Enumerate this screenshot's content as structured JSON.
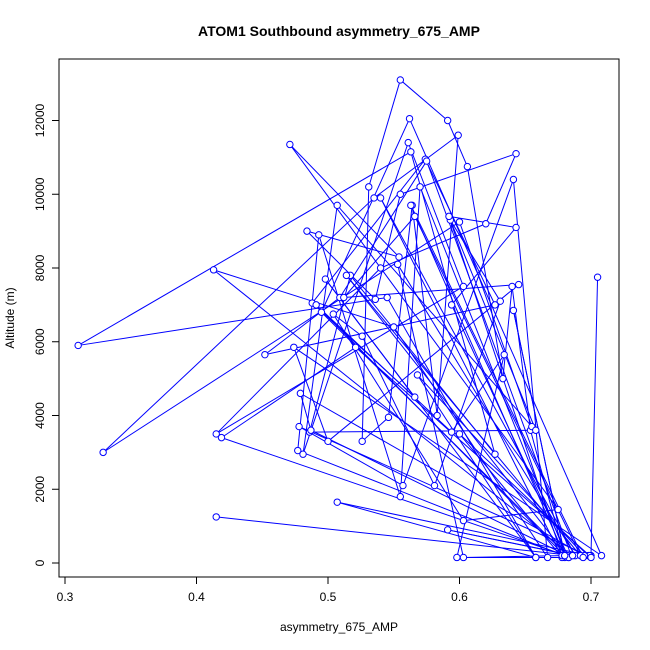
{
  "chart_data": {
    "type": "line",
    "title": "ATOM1 Southbound asymmetry_675_AMP",
    "xlabel": "asymmetry_675_AMP",
    "ylabel": "Altitude (m)",
    "xlim": [
      0.3,
      0.71
    ],
    "ylim": [
      0,
      13100
    ],
    "xticks": [
      "0.3",
      "0.4",
      "0.5",
      "0.6",
      "0.7"
    ],
    "yticks": [
      "0",
      "2000",
      "4000",
      "6000",
      "8000",
      "10000",
      "12000"
    ],
    "grid": false,
    "color": "#0000ff",
    "series": [
      {
        "x": [
          0.705,
          0.7,
          0.68,
          0.654,
          0.64,
          0.633,
          0.606,
          0.591,
          0.555,
          0.531,
          0.526,
          0.546,
          0.564,
          0.583,
          0.599,
          0.535,
          0.329,
          0.6,
          0.655,
          0.507,
          0.481,
          0.561,
          0.603,
          0.415,
          0.54,
          0.62,
          0.643,
          0.555,
          0.536,
          0.484,
          0.554,
          0.471,
          0.675,
          0.603,
          0.504,
          0.526,
          0.581,
          0.631,
          0.593,
          0.658,
          0.486,
          0.517,
          0.627,
          0.563,
          0.31,
          0.545,
          0.658,
          0.498,
          0.566,
          0.488,
          0.574,
          0.627,
          0.452,
          0.509,
          0.575,
          0.685,
          0.413,
          0.55,
          0.667,
          0.641,
          0.557,
          0.478,
          0.698,
          0.6,
          0.678,
          0.54,
          0.688,
          0.553,
          0.603,
          0.678,
          0.592,
          0.643,
          0.594,
          0.683,
          0.477,
          0.493,
          0.555,
          0.57,
          0.681,
          0.419,
          0.521,
          0.699,
          0.507,
          0.658,
          0.568,
          0.695,
          0.479,
          0.487,
          0.682,
          0.495,
          0.562,
          0.708,
          0.474,
          0.5,
          0.645,
          0.512,
          0.566,
          0.692,
          0.514,
          0.683,
          0.598,
          0.634,
          0.594,
          0.491,
          0.68,
          0.641,
          0.68,
          0.563,
          0.694,
          0.591,
          0.686,
          0.7,
          0.415
        ],
        "y": [
          7750,
          200,
          150,
          3600,
          7500,
          5000,
          10750,
          12000,
          13100,
          10200,
          3300,
          3950,
          9700,
          4000,
          11600,
          9900,
          3000,
          9250,
          3700,
          9700,
          2950,
          11400,
          7500,
          3500,
          8000,
          9200,
          11100,
          10000,
          7150,
          9000,
          8300,
          11350,
          1450,
          1150,
          6750,
          6150,
          2100,
          7100,
          9300,
          3600,
          3550,
          7800,
          2950,
          11150,
          5900,
          7200,
          150,
          7700,
          4500,
          7050,
          10950,
          7000,
          5650,
          7200,
          10900,
          200,
          7950,
          6400,
          150,
          10400,
          2100,
          3700,
          200,
          3500,
          150,
          9900,
          200,
          8100,
          150,
          200,
          9400,
          9100,
          7000,
          150,
          3050,
          8900,
          1800,
          10200,
          200,
          3400,
          5850,
          200,
          1650,
          150,
          5100,
          200,
          4600,
          3600,
          200,
          6800,
          12050,
          200,
          5850,
          3300,
          7550,
          7200,
          9400,
          200,
          7800,
          150,
          150,
          5650,
          3550,
          7000,
          200,
          6850,
          200,
          9700,
          150,
          900,
          200,
          150,
          1250
        ]
      }
    ]
  }
}
